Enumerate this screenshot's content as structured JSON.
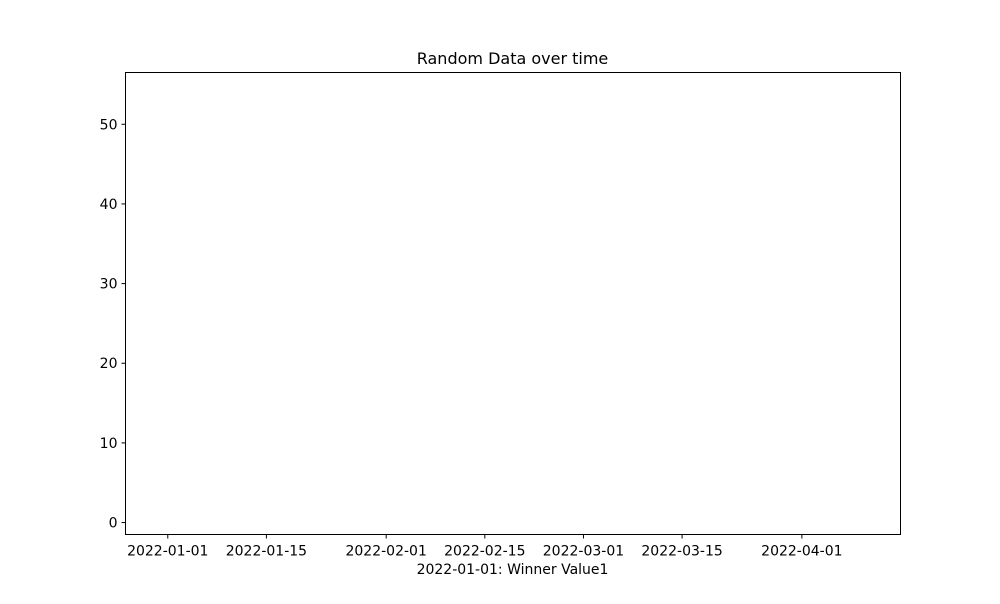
{
  "chart_data": {
    "type": "line",
    "title": "Random Data over time",
    "xlabel": "2022-01-01: Winner Value1",
    "ylabel": "",
    "x_axis_type": "date",
    "xlim": [
      "2021-12-26",
      "2022-04-15"
    ],
    "ylim": [
      -1.5,
      56.5
    ],
    "x_ticks": [
      "2022-01-01",
      "2022-01-15",
      "2022-02-01",
      "2022-02-15",
      "2022-03-01",
      "2022-03-15",
      "2022-04-01"
    ],
    "y_ticks": [
      0,
      10,
      20,
      30,
      40,
      50
    ],
    "grid": false,
    "series": []
  }
}
